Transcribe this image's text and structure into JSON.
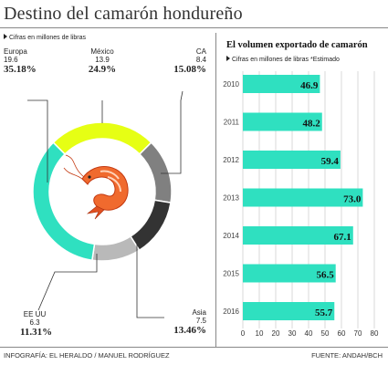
{
  "header": {
    "title": "Destino del camarón hondureño"
  },
  "footer": {
    "left": "INFOGRAFÍA: EL HERALDO / MANUEL RODRÍGUEZ",
    "right": "FUENTE: ANDAH/BCH"
  },
  "colors": {
    "teal": "#2fe0c0",
    "yellow": "#e6ff14",
    "grey": "#808080",
    "lightgrey": "#b9b9b9",
    "dark": "#333333"
  },
  "chart_data": [
    {
      "type": "pie",
      "style": "donut",
      "note": "Cifras en millones de libras",
      "slices": [
        {
          "name": "México",
          "value": 13.9,
          "pct": "24.9%",
          "color": "#e6ff14"
        },
        {
          "name": "CA",
          "value": 8.4,
          "pct": "15.08%",
          "color": "#808080"
        },
        {
          "name": "Asia",
          "value": 7.5,
          "pct": "13.46%",
          "color": "#333333"
        },
        {
          "name": "EE UU",
          "value": 6.3,
          "pct": "11.31%",
          "color": "#b9b9b9"
        },
        {
          "name": "Europa",
          "value": 19.6,
          "pct": "35.18%",
          "color": "#2fe0c0"
        }
      ]
    },
    {
      "type": "bar",
      "orientation": "horizontal",
      "title": "El volumen exportado de camarón",
      "note": "Cifras en millones de libras *Estimado",
      "categories": [
        "2010",
        "2011",
        "2012",
        "2013",
        "2014",
        "2015",
        "2016"
      ],
      "values": [
        46.9,
        48.2,
        59.4,
        73.0,
        67.1,
        56.5,
        55.7
      ],
      "value_labels": [
        "46.9",
        "48.2",
        "59.4",
        "73.0",
        "67.1",
        "56.5",
        "55.7"
      ],
      "xlim": [
        0,
        80
      ],
      "xticks": [
        "0",
        "10",
        "20",
        "30",
        "40",
        "50",
        "60",
        "70",
        "80"
      ],
      "grid": true,
      "color": "#2fe0c0"
    }
  ]
}
